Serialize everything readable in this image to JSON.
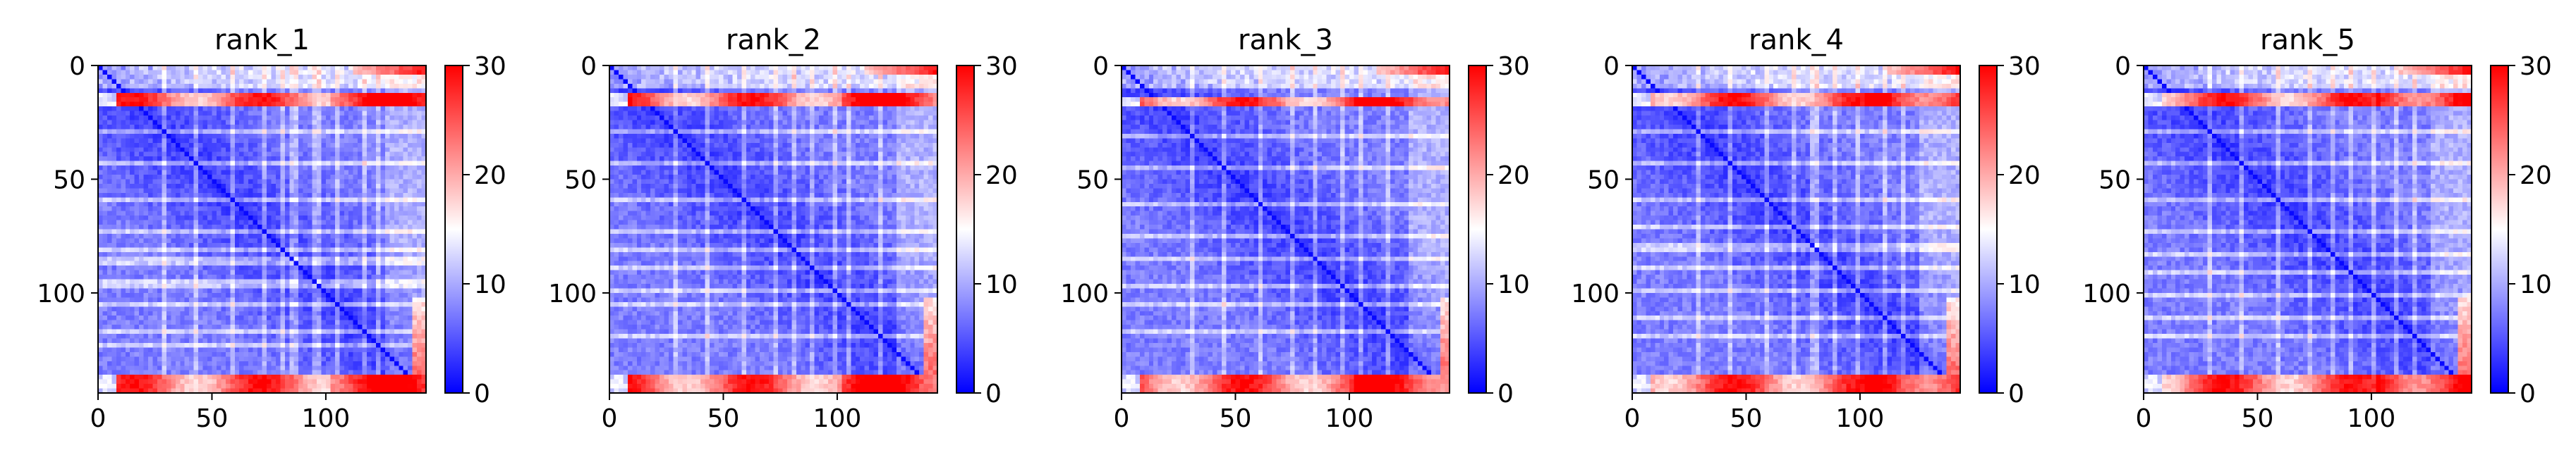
{
  "chart_data": [
    {
      "type": "heatmap",
      "title": "rank_1",
      "xlabel": "",
      "ylabel": "",
      "xlim": [
        0,
        144
      ],
      "ylim": [
        144,
        0
      ],
      "x_ticks": [
        0,
        50,
        100
      ],
      "y_ticks": [
        0,
        50,
        100
      ],
      "colorbar": {
        "min": 0,
        "max": 30,
        "ticks": [
          0,
          10,
          20,
          30
        ],
        "colormap": "bwr",
        "low_color": "#0000ff",
        "mid_color": "#ffffff",
        "high_color": "#ff0000"
      },
      "matrix_size": 144,
      "features": {
        "diagonal": "low (near 0)",
        "high_band_rows": [
          [
            12,
            17
          ],
          [
            136,
            144
          ]
        ],
        "high_band_top_right_rows": [
          [
            0,
            4
          ]
        ],
        "high_band_cols": [
          [
            137,
            144
          ]
        ],
        "light_stripes": [
          28,
          42,
          58,
          72,
          80,
          85,
          95,
          104,
          116,
          122
        ]
      }
    },
    {
      "type": "heatmap",
      "title": "rank_2",
      "xlabel": "",
      "ylabel": "",
      "xlim": [
        0,
        144
      ],
      "ylim": [
        144,
        0
      ],
      "x_ticks": [
        0,
        50,
        100
      ],
      "y_ticks": [
        0,
        50,
        100
      ],
      "colorbar": {
        "min": 0,
        "max": 30,
        "ticks": [
          0,
          10,
          20,
          30
        ],
        "colormap": "bwr",
        "low_color": "#0000ff",
        "mid_color": "#ffffff",
        "high_color": "#ff0000"
      },
      "matrix_size": 144,
      "features": {
        "diagonal": "low (near 0)",
        "high_band_rows": [
          [
            12,
            17
          ],
          [
            136,
            144
          ]
        ],
        "high_band_top_right_rows": [
          [
            0,
            4
          ]
        ],
        "high_band_cols": [
          [
            138,
            144
          ]
        ],
        "light_stripes": [
          28,
          42,
          58,
          72,
          80,
          88,
          98,
          104,
          118
        ]
      }
    },
    {
      "type": "heatmap",
      "title": "rank_3",
      "xlabel": "",
      "ylabel": "",
      "xlim": [
        0,
        144
      ],
      "ylim": [
        144,
        0
      ],
      "x_ticks": [
        0,
        50,
        100
      ],
      "y_ticks": [
        0,
        50,
        100
      ],
      "colorbar": {
        "min": 0,
        "max": 30,
        "ticks": [
          0,
          10,
          20,
          30
        ],
        "colormap": "bwr",
        "low_color": "#0000ff",
        "mid_color": "#ffffff",
        "high_color": "#ff0000"
      },
      "matrix_size": 144,
      "features": {
        "diagonal": "low (near 0)",
        "high_band_rows": [
          [
            13,
            18
          ],
          [
            136,
            144
          ]
        ],
        "high_band_top_right_rows": [
          [
            0,
            4
          ]
        ],
        "high_band_cols": [
          [
            139,
            144
          ]
        ],
        "light_stripes": [
          30,
          44,
          60,
          74,
          84,
          96,
          104,
          116
        ]
      }
    },
    {
      "type": "heatmap",
      "title": "rank_4",
      "xlabel": "",
      "ylabel": "",
      "xlim": [
        0,
        144
      ],
      "ylim": [
        144,
        0
      ],
      "x_ticks": [
        0,
        50,
        100
      ],
      "y_ticks": [
        0,
        50,
        100
      ],
      "colorbar": {
        "min": 0,
        "max": 30,
        "ticks": [
          0,
          10,
          20,
          30
        ],
        "colormap": "bwr",
        "low_color": "#0000ff",
        "mid_color": "#ffffff",
        "high_color": "#ff0000"
      },
      "matrix_size": 144,
      "features": {
        "diagonal": "low (near 0)",
        "high_band_rows": [
          [
            12,
            18
          ],
          [
            136,
            144
          ]
        ],
        "high_band_top_right_rows": [
          [
            0,
            4
          ]
        ],
        "high_band_cols": [
          [
            137,
            144
          ]
        ],
        "light_stripes": [
          28,
          42,
          58,
          70,
          79,
          88,
          98,
          110,
          118
        ]
      }
    },
    {
      "type": "heatmap",
      "title": "rank_5",
      "xlabel": "",
      "ylabel": "",
      "xlim": [
        0,
        144
      ],
      "ylim": [
        144,
        0
      ],
      "x_ticks": [
        0,
        50,
        100
      ],
      "y_ticks": [
        0,
        50,
        100
      ],
      "colorbar": {
        "min": 0,
        "max": 30,
        "ticks": [
          0,
          10,
          20,
          30
        ],
        "colormap": "bwr",
        "low_color": "#0000ff",
        "mid_color": "#ffffff",
        "high_color": "#ff0000"
      },
      "matrix_size": 144,
      "features": {
        "diagonal": "low (near 0)",
        "high_band_rows": [
          [
            12,
            17
          ],
          [
            136,
            144
          ]
        ],
        "high_band_top_right_rows": [
          [
            0,
            4
          ]
        ],
        "high_band_cols": [
          [
            138,
            144
          ]
        ],
        "light_stripes": [
          28,
          42,
          58,
          72,
          82,
          90,
          100,
          110,
          118
        ]
      }
    }
  ]
}
